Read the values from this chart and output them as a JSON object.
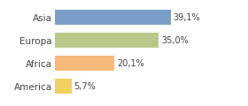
{
  "categories": [
    "America",
    "Africa",
    "Europa",
    "Asia"
  ],
  "values": [
    5.7,
    20.1,
    35.0,
    39.1
  ],
  "labels": [
    "5,7%",
    "20,1%",
    "35,0%",
    "39,1%"
  ],
  "bar_colors": [
    "#f0d060",
    "#f5b87a",
    "#b8c98a",
    "#7a9ec8"
  ],
  "background_color": "#ffffff",
  "xlim": [
    0,
    50
  ],
  "bar_height": 0.65,
  "label_fontsize": 7,
  "tick_fontsize": 7.5
}
